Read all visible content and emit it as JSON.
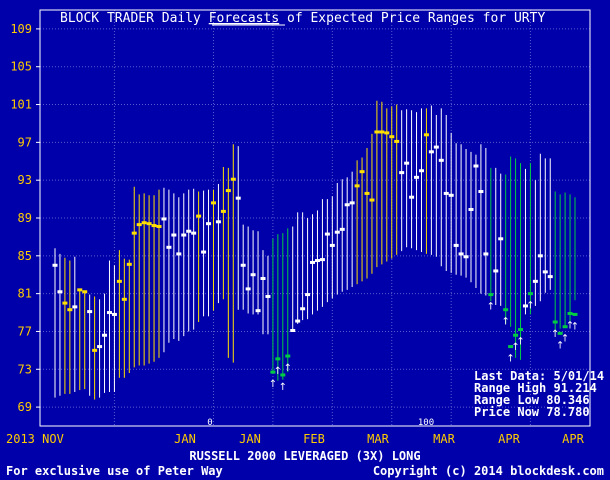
{
  "title_parts": [
    "BLOCK TRADER Daily ",
    "Forecasts",
    " of Expected Price Ranges for  URTY"
  ],
  "info": {
    "last_data": "Last Data: 5/01/14",
    "range_high": "Range High  91.214",
    "range_low": "Range Low   80.346",
    "price_now": "Price Now   78.780"
  },
  "xlabel": "RUSSELL 2000 LEVERAGED (3X) LONG",
  "footer_left": "For exclusive use of Peter Way",
  "footer_right": "Copyright (c) 2014 blockdesk.com",
  "colors": {
    "background": "#0000aa",
    "white": "#ffffff",
    "yellow": "#ffe000",
    "green": "#00cc44",
    "grid": "#5a5ad0",
    "axis_text": "#ffcc00"
  },
  "chart_data": {
    "type": "range",
    "title": "BLOCK TRADER Daily Forecasts of Expected Price Ranges for  URTY",
    "xlabel": "RUSSELL 2000 LEVERAGED (3X) LONG",
    "ylim": [
      67,
      111
    ],
    "y_ticks": [
      69,
      73,
      77,
      81,
      85,
      89,
      93,
      97,
      101,
      105,
      109
    ],
    "x_ticks": [
      "2013  NOV",
      "JAN",
      "JAN",
      "FEB",
      "MAR",
      "MAR",
      "APR",
      "APR"
    ],
    "scale_marks": [
      "0",
      "100"
    ],
    "grid": true,
    "ranges": [
      {
        "lo": 70.0,
        "hi": 85.8,
        "p": 84.0,
        "c": "w"
      },
      {
        "lo": 70.2,
        "hi": 85.2,
        "p": 81.2,
        "c": "w"
      },
      {
        "lo": 70.4,
        "hi": 84.8,
        "p": 80.0,
        "c": "y"
      },
      {
        "lo": 70.4,
        "hi": 84.5,
        "p": 79.3,
        "c": "y"
      },
      {
        "lo": 70.6,
        "hi": 84.9,
        "p": 79.6,
        "c": "w"
      },
      {
        "lo": 70.8,
        "hi": 81.4,
        "p": 81.4,
        "c": "y"
      },
      {
        "lo": 70.9,
        "hi": 81.3,
        "p": 81.2,
        "c": "y"
      },
      {
        "lo": 70.2,
        "hi": 80.9,
        "p": 79.1,
        "c": "w"
      },
      {
        "lo": 69.8,
        "hi": 80.7,
        "p": 75.0,
        "c": "y"
      },
      {
        "lo": 70.0,
        "hi": 80.4,
        "p": 75.4,
        "c": "w"
      },
      {
        "lo": 70.5,
        "hi": 81.0,
        "p": 76.6,
        "c": "w"
      },
      {
        "lo": 70.6,
        "hi": 84.5,
        "p": 79.0,
        "c": "w"
      },
      {
        "lo": 70.6,
        "hi": 84.0,
        "p": 78.8,
        "c": "w"
      },
      {
        "lo": 72.1,
        "hi": 85.6,
        "p": 82.3,
        "c": "y"
      },
      {
        "lo": 72.1,
        "hi": 84.7,
        "p": 80.4,
        "c": "y"
      },
      {
        "lo": 72.6,
        "hi": 84.6,
        "p": 84.1,
        "c": "y"
      },
      {
        "lo": 73.2,
        "hi": 92.3,
        "p": 87.4,
        "c": "y"
      },
      {
        "lo": 73.4,
        "hi": 91.5,
        "p": 88.3,
        "c": "y"
      },
      {
        "lo": 73.4,
        "hi": 91.6,
        "p": 88.5,
        "c": "y"
      },
      {
        "lo": 73.6,
        "hi": 91.4,
        "p": 88.4,
        "c": "y"
      },
      {
        "lo": 73.8,
        "hi": 91.4,
        "p": 88.2,
        "c": "y"
      },
      {
        "lo": 74.2,
        "hi": 92.0,
        "p": 88.1,
        "c": "y"
      },
      {
        "lo": 74.8,
        "hi": 92.2,
        "p": 88.9,
        "c": "w"
      },
      {
        "lo": 75.8,
        "hi": 92.0,
        "p": 85.9,
        "c": "w"
      },
      {
        "lo": 76.2,
        "hi": 91.6,
        "p": 87.2,
        "c": "w"
      },
      {
        "lo": 76.0,
        "hi": 91.2,
        "p": 85.2,
        "c": "w"
      },
      {
        "lo": 76.5,
        "hi": 91.6,
        "p": 87.2,
        "c": "w"
      },
      {
        "lo": 77.0,
        "hi": 92.0,
        "p": 87.6,
        "c": "w"
      },
      {
        "lo": 77.2,
        "hi": 92.1,
        "p": 87.4,
        "c": "w"
      },
      {
        "lo": 78.0,
        "hi": 91.8,
        "p": 89.2,
        "c": "y"
      },
      {
        "lo": 78.6,
        "hi": 91.9,
        "p": 85.4,
        "c": "w"
      },
      {
        "lo": 78.6,
        "hi": 92.0,
        "p": 88.4,
        "c": "w"
      },
      {
        "lo": 79.2,
        "hi": 92.0,
        "p": 90.6,
        "c": "y"
      },
      {
        "lo": 80.0,
        "hi": 92.6,
        "p": 88.6,
        "c": "w"
      },
      {
        "lo": 80.4,
        "hi": 94.4,
        "p": 89.7,
        "c": "y"
      },
      {
        "lo": 74.2,
        "hi": 94.3,
        "p": 91.9,
        "c": "y"
      },
      {
        "lo": 73.7,
        "hi": 96.8,
        "p": 93.1,
        "c": "y"
      },
      {
        "lo": 79.3,
        "hi": 96.6,
        "p": 91.1,
        "c": "w"
      },
      {
        "lo": 79.3,
        "hi": 88.3,
        "p": 84.0,
        "c": "w"
      },
      {
        "lo": 78.9,
        "hi": 88.1,
        "p": 81.5,
        "c": "w"
      },
      {
        "lo": 78.8,
        "hi": 87.7,
        "p": 83.0,
        "c": "w"
      },
      {
        "lo": 78.8,
        "hi": 87.6,
        "p": 79.2,
        "c": "w"
      },
      {
        "lo": 76.7,
        "hi": 85.6,
        "p": 82.6,
        "c": "w"
      },
      {
        "lo": 76.7,
        "hi": 85.0,
        "p": 80.7,
        "c": "w"
      },
      {
        "lo": 72.7,
        "hi": 86.8,
        "p": 72.7,
        "c": "g"
      },
      {
        "lo": 71.8,
        "hi": 87.3,
        "p": 74.1,
        "c": "g"
      },
      {
        "lo": 71.9,
        "hi": 87.4,
        "p": 72.4,
        "c": "g"
      },
      {
        "lo": 72.7,
        "hi": 87.9,
        "p": 74.4,
        "c": "g"
      },
      {
        "lo": 77.2,
        "hi": 88.1,
        "p": 77.1,
        "c": "w"
      },
      {
        "lo": 77.8,
        "hi": 89.6,
        "p": 78.1,
        "c": "w"
      },
      {
        "lo": 78.2,
        "hi": 89.6,
        "p": 79.4,
        "c": "w"
      },
      {
        "lo": 78.3,
        "hi": 89.0,
        "p": 80.9,
        "c": "w"
      },
      {
        "lo": 78.8,
        "hi": 89.4,
        "p": 84.3,
        "c": "w"
      },
      {
        "lo": 79.2,
        "hi": 89.8,
        "p": 84.5,
        "c": "w"
      },
      {
        "lo": 79.6,
        "hi": 91.0,
        "p": 84.6,
        "c": "w"
      },
      {
        "lo": 80.1,
        "hi": 91.0,
        "p": 87.3,
        "c": "w"
      },
      {
        "lo": 80.5,
        "hi": 91.3,
        "p": 86.1,
        "c": "w"
      },
      {
        "lo": 80.9,
        "hi": 92.7,
        "p": 87.5,
        "c": "w"
      },
      {
        "lo": 81.2,
        "hi": 93.1,
        "p": 87.8,
        "c": "w"
      },
      {
        "lo": 81.4,
        "hi": 93.3,
        "p": 90.4,
        "c": "w"
      },
      {
        "lo": 81.7,
        "hi": 93.9,
        "p": 90.6,
        "c": "w"
      },
      {
        "lo": 82.0,
        "hi": 95.1,
        "p": 92.4,
        "c": "y"
      },
      {
        "lo": 82.3,
        "hi": 95.4,
        "p": 93.9,
        "c": "y"
      },
      {
        "lo": 82.6,
        "hi": 96.4,
        "p": 91.6,
        "c": "y"
      },
      {
        "lo": 83.1,
        "hi": 97.9,
        "p": 90.9,
        "c": "y"
      },
      {
        "lo": 83.8,
        "hi": 101.4,
        "p": 98.1,
        "c": "y"
      },
      {
        "lo": 84.1,
        "hi": 101.3,
        "p": 98.1,
        "c": "y"
      },
      {
        "lo": 84.4,
        "hi": 100.6,
        "p": 98.0,
        "c": "y"
      },
      {
        "lo": 84.7,
        "hi": 100.8,
        "p": 97.6,
        "c": "y"
      },
      {
        "lo": 85.1,
        "hi": 101.0,
        "p": 97.1,
        "c": "y"
      },
      {
        "lo": 85.5,
        "hi": 100.4,
        "p": 93.8,
        "c": "w"
      },
      {
        "lo": 85.9,
        "hi": 100.5,
        "p": 94.8,
        "c": "w"
      },
      {
        "lo": 85.8,
        "hi": 100.4,
        "p": 91.2,
        "c": "w"
      },
      {
        "lo": 85.6,
        "hi": 100.2,
        "p": 93.3,
        "c": "w"
      },
      {
        "lo": 85.4,
        "hi": 100.6,
        "p": 94.0,
        "c": "w"
      },
      {
        "lo": 85.2,
        "hi": 100.6,
        "p": 97.8,
        "c": "y"
      },
      {
        "lo": 85.1,
        "hi": 100.9,
        "p": 96.0,
        "c": "w"
      },
      {
        "lo": 84.9,
        "hi": 99.9,
        "p": 96.5,
        "c": "w"
      },
      {
        "lo": 83.9,
        "hi": 100.6,
        "p": 95.1,
        "c": "w"
      },
      {
        "lo": 83.4,
        "hi": 99.9,
        "p": 91.6,
        "c": "w"
      },
      {
        "lo": 83.2,
        "hi": 98.0,
        "p": 91.4,
        "c": "w"
      },
      {
        "lo": 83.0,
        "hi": 96.9,
        "p": 86.1,
        "c": "w"
      },
      {
        "lo": 82.9,
        "hi": 96.8,
        "p": 85.2,
        "c": "w"
      },
      {
        "lo": 82.7,
        "hi": 96.3,
        "p": 84.9,
        "c": "w"
      },
      {
        "lo": 82.2,
        "hi": 96.0,
        "p": 89.9,
        "c": "w"
      },
      {
        "lo": 81.6,
        "hi": 95.7,
        "p": 94.5,
        "c": "w"
      },
      {
        "lo": 81.0,
        "hi": 96.8,
        "p": 91.8,
        "c": "w"
      },
      {
        "lo": 80.8,
        "hi": 96.4,
        "p": 85.2,
        "c": "w"
      },
      {
        "lo": 80.2,
        "hi": 94.3,
        "p": 80.9,
        "c": "g"
      },
      {
        "lo": 79.8,
        "hi": 94.3,
        "p": 83.4,
        "c": "w"
      },
      {
        "lo": 79.7,
        "hi": 93.7,
        "p": 86.8,
        "c": "w"
      },
      {
        "lo": 77.8,
        "hi": 93.6,
        "p": 79.3,
        "c": "g"
      },
      {
        "lo": 77.5,
        "hi": 95.5,
        "p": 75.4,
        "c": "g"
      },
      {
        "lo": 74.2,
        "hi": 95.3,
        "p": 76.6,
        "c": "g"
      },
      {
        "lo": 74.0,
        "hi": 94.8,
        "p": 77.2,
        "c": "g"
      },
      {
        "lo": 78.8,
        "hi": 94.2,
        "p": 79.7,
        "c": "w"
      },
      {
        "lo": 78.8,
        "hi": 94.8,
        "p": 81.0,
        "c": "g"
      },
      {
        "lo": 79.7,
        "hi": 93.0,
        "p": 82.3,
        "c": "w"
      },
      {
        "lo": 80.2,
        "hi": 95.8,
        "p": 85.0,
        "c": "w"
      },
      {
        "lo": 81.1,
        "hi": 95.3,
        "p": 83.3,
        "c": "w"
      },
      {
        "lo": 81.4,
        "hi": 95.3,
        "p": 82.8,
        "c": "w"
      },
      {
        "lo": 76.9,
        "hi": 91.8,
        "p": 78.0,
        "c": "g"
      },
      {
        "lo": 77.3,
        "hi": 91.5,
        "p": 76.8,
        "c": "g"
      },
      {
        "lo": 77.6,
        "hi": 91.7,
        "p": 77.5,
        "c": "g"
      },
      {
        "lo": 78.1,
        "hi": 91.5,
        "p": 78.9,
        "c": "g"
      },
      {
        "lo": 80.3,
        "hi": 91.2,
        "p": 78.8,
        "c": "g"
      }
    ]
  }
}
